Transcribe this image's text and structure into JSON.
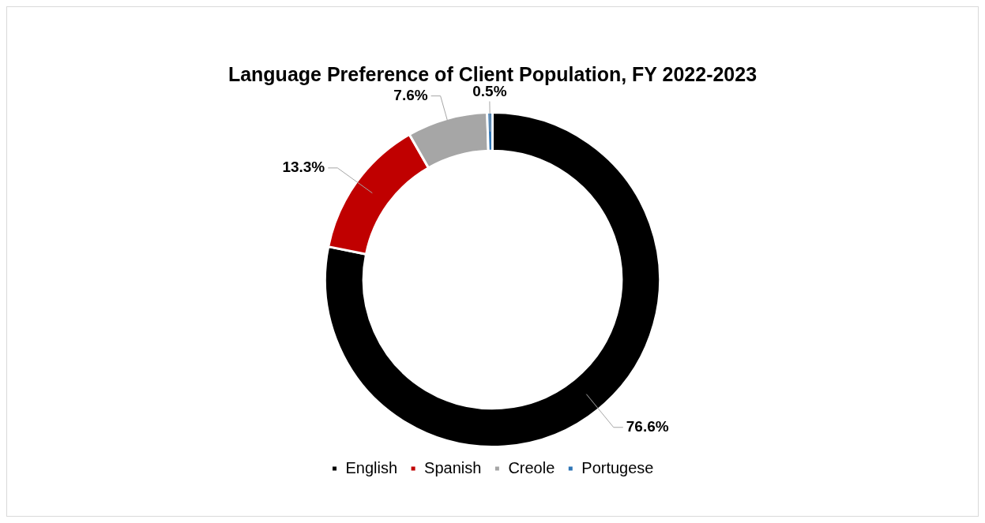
{
  "chart_data": {
    "type": "donut",
    "title": "Language Preference of Client Population, FY 2022-2023",
    "categories": [
      "English",
      "Spanish",
      "Creole",
      "Portugese"
    ],
    "values": [
      76.6,
      13.3,
      7.6,
      0.5
    ],
    "colors": [
      "#000000",
      "#c00000",
      "#a6a6a6",
      "#2e75b6"
    ],
    "value_labels": [
      "76.6%",
      "13.3%",
      "7.6%",
      "0.5%"
    ],
    "legend": "bottom"
  }
}
